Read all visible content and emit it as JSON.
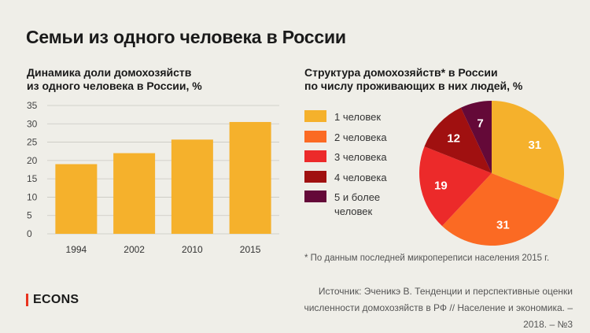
{
  "title": "Семьи из одного человека в России",
  "footnote": "* По данным последней микропереписи населения 2015 г.",
  "source": {
    "line1": "Источник: Эченикэ В. Тенденции и перспективные оценки",
    "line2": "численности домохозяйств в РФ // Население и экономика. – 2018. – №3"
  },
  "brand": "ECONS",
  "colors": {
    "bar": "#f5b12c",
    "background": "#efeee8",
    "accent": "#e8331f"
  },
  "chart_data": [
    {
      "type": "bar",
      "title_lines": [
        "Динамика доли домохозяйств",
        "из одного человека в России, %"
      ],
      "categories": [
        "1994",
        "2002",
        "2010",
        "2015"
      ],
      "values": [
        19,
        22,
        25.7,
        30.5
      ],
      "ylim": [
        0,
        35
      ],
      "yticks": [
        0,
        5,
        10,
        15,
        20,
        25,
        30,
        35
      ],
      "grid": true
    },
    {
      "type": "pie",
      "title_lines": [
        "Структура домохозяйств* в России",
        "по числу проживающих в них людей, %"
      ],
      "legend_position": "left",
      "slices": [
        {
          "label_lines": [
            "1 человек"
          ],
          "value": 31,
          "color": "#f5b12c"
        },
        {
          "label_lines": [
            "2 человека"
          ],
          "value": 31,
          "color": "#fb6a23"
        },
        {
          "label_lines": [
            "3 человека"
          ],
          "value": 19,
          "color": "#ec2a2a"
        },
        {
          "label_lines": [
            "4 человека"
          ],
          "value": 12,
          "color": "#a01010"
        },
        {
          "label_lines": [
            "5 и более",
            "человек"
          ],
          "value": 7,
          "color": "#640938"
        }
      ]
    }
  ]
}
